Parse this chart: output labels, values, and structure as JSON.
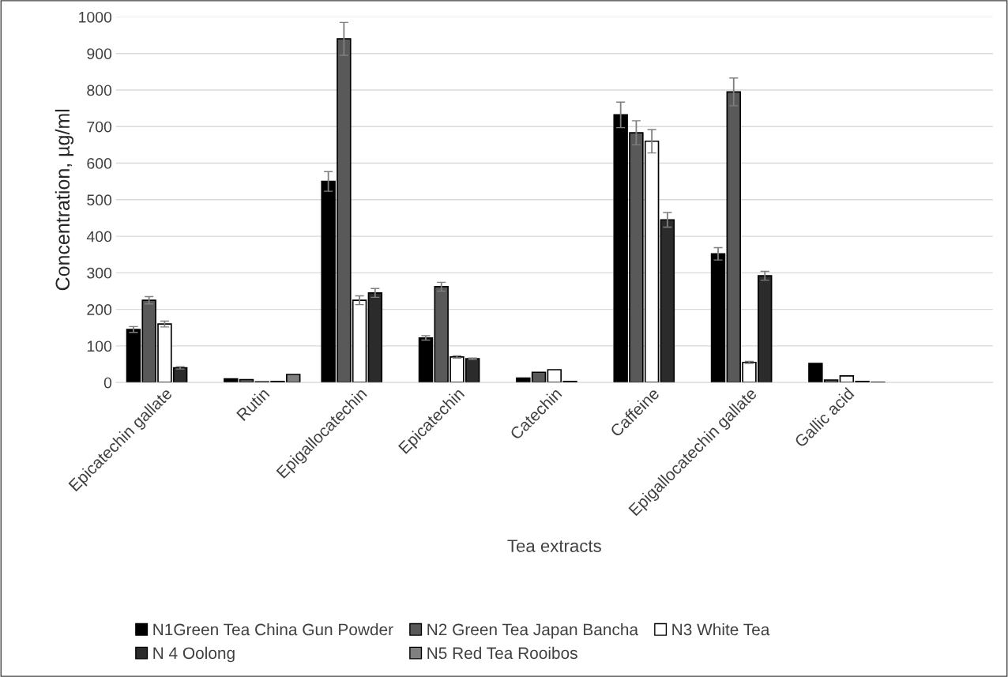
{
  "chart_data": {
    "type": "bar",
    "xlabel": "Tea extracts",
    "ylabel": "Concentration, µg/ml",
    "categories": [
      "Epicatechin gallate",
      "Rutin",
      "Epigallocatechin",
      "Epicatechin",
      "Catechin",
      "Caffeine",
      "Epigallocatechin gallate",
      "Gallic acid"
    ],
    "series": [
      {
        "name": "N1Green Tea China Gun Powder",
        "color": "#000000",
        "values": [
          145,
          10,
          550,
          122,
          12,
          732,
          352,
          52
        ],
        "errors": [
          8,
          null,
          27,
          6,
          null,
          35,
          17,
          null
        ]
      },
      {
        "name": "N2 Green Tea Japan Bancha",
        "color": "#595959",
        "values": [
          225,
          8,
          940,
          262,
          28,
          683,
          795,
          7
        ],
        "errors": [
          10,
          null,
          45,
          12,
          null,
          33,
          38,
          null
        ]
      },
      {
        "name": "N3 White Tea",
        "color": "#ffffff",
        "values": [
          160,
          2,
          225,
          70,
          35,
          660,
          55,
          18
        ],
        "errors": [
          8,
          null,
          12,
          3,
          null,
          32,
          3,
          null
        ]
      },
      {
        "name": "N 4 Oolong",
        "color": "#2b2b2b",
        "values": [
          40,
          3,
          245,
          65,
          3,
          445,
          292,
          3
        ],
        "errors": [
          3,
          null,
          12,
          2,
          null,
          20,
          12,
          null
        ]
      },
      {
        "name": "N5 Red Tea Rooibos",
        "color": "#808080",
        "values": [
          null,
          22,
          null,
          null,
          null,
          null,
          null,
          1
        ]
      }
    ],
    "ylim": [
      0,
      1000
    ],
    "yticks": [
      0,
      100,
      200,
      300,
      400,
      500,
      600,
      700,
      800,
      900,
      1000
    ],
    "grid": "y",
    "legend": "bottom"
  }
}
